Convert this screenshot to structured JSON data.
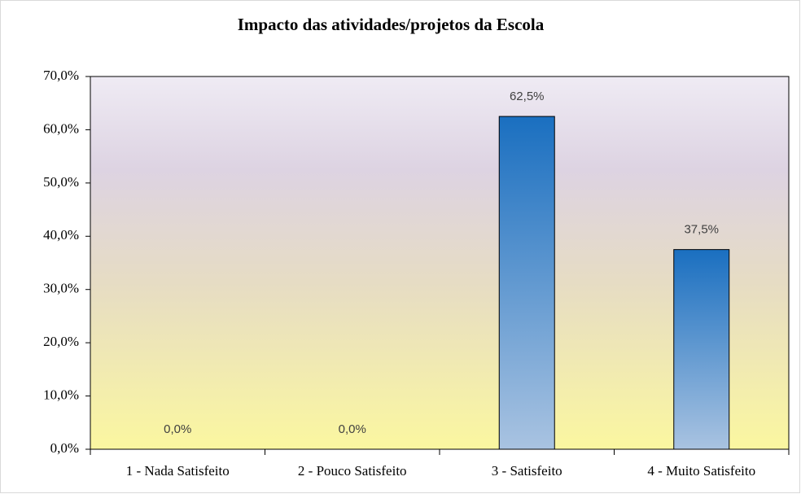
{
  "chart_data": {
    "type": "bar",
    "title": "Impacto das atividades/projetos da Escola",
    "categories": [
      "1 - Nada Satisfeito",
      "2 - Pouco Satisfeito",
      "3 - Satisfeito",
      "4 - Muito Satisfeito"
    ],
    "values": [
      0,
      0,
      62.5,
      37.5
    ],
    "value_labels": [
      "0,0%",
      "0,0%",
      "62,5%",
      "37,5%"
    ],
    "color": "#1a6fc0",
    "ylim": [
      0,
      70
    ],
    "yticks": [
      {
        "value": 0,
        "label": "0,0%"
      },
      {
        "value": 10,
        "label": "10,0%"
      },
      {
        "value": 20,
        "label": "20,0%"
      },
      {
        "value": 30,
        "label": "30,0%"
      },
      {
        "value": 40,
        "label": "40,0%"
      },
      {
        "value": 50,
        "label": "50,0%"
      },
      {
        "value": 60,
        "label": "60,0%"
      },
      {
        "value": 70,
        "label": "70,0%"
      }
    ],
    "grid": false
  }
}
